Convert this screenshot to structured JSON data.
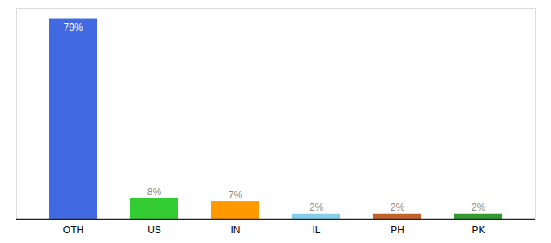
{
  "chart_data": {
    "type": "bar",
    "categories": [
      "OTH",
      "US",
      "IN",
      "IL",
      "PH",
      "PK"
    ],
    "values": [
      79,
      8,
      7,
      2,
      2,
      2
    ],
    "value_labels": [
      "79%",
      "8%",
      "7%",
      "2%",
      "2%",
      "2%"
    ],
    "colors": [
      "#4169e1",
      "#33cc33",
      "#ff9900",
      "#87ceeb",
      "#c0622a",
      "#339933"
    ],
    "ylim": [
      0,
      83
    ],
    "data_labels": true,
    "tick_labels": "x"
  }
}
